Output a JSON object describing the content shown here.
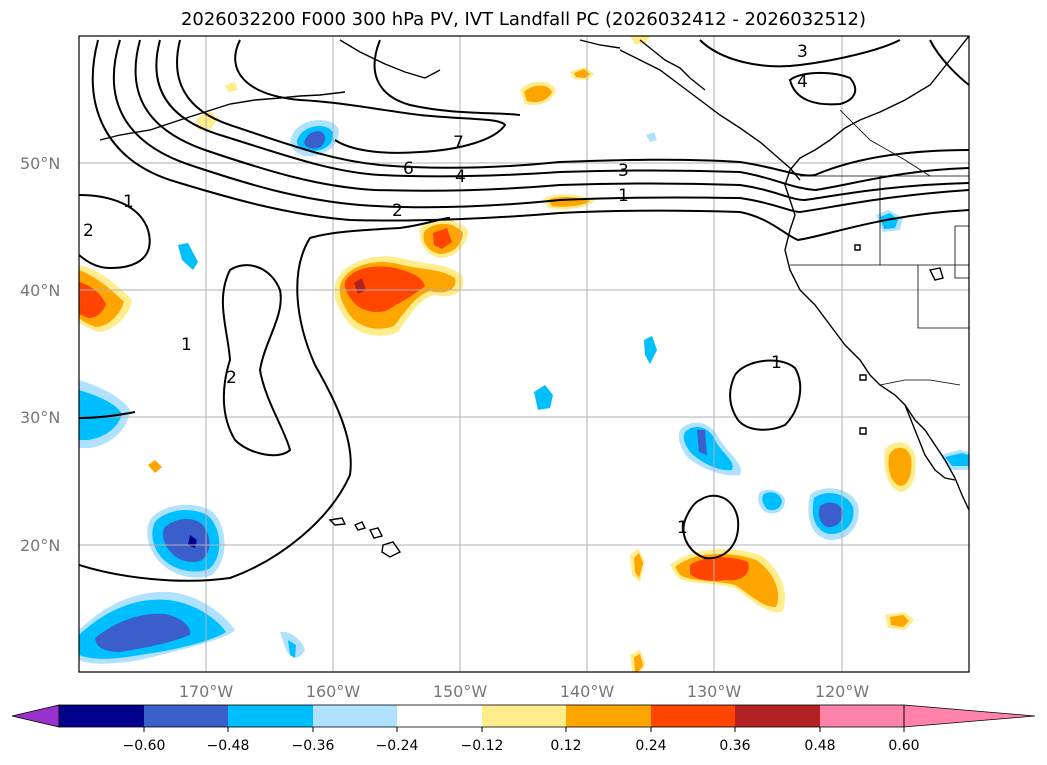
{
  "title": "2026032200 F000 300 hPa PV, IVT Landfall PC (2026032412 - 2026032512)",
  "lat_labels": [
    "50°N",
    "40°N",
    "30°N",
    "20°N"
  ],
  "lon_labels": [
    "170°W",
    "160°W",
    "150°W",
    "140°W",
    "130°W",
    "120°W"
  ],
  "colorbar": {
    "ticks": [
      "−0.60",
      "−0.48",
      "−0.36",
      "−0.24",
      "−0.12",
      "0.12",
      "0.24",
      "0.36",
      "0.48",
      "0.60"
    ],
    "colors": [
      "#9932cc",
      "#00008b",
      "#3a5fcd",
      "#00bfff",
      "#b0e2ff",
      "#ffffff",
      "#ffec8b",
      "#ffa500",
      "#ff4500",
      "#b22222",
      "#ff82ab"
    ]
  },
  "contour_labels": [
    "1",
    "2",
    "3",
    "4",
    "6",
    "7",
    "1",
    "2",
    "3",
    "4",
    "1",
    "2",
    "1",
    "1"
  ]
}
